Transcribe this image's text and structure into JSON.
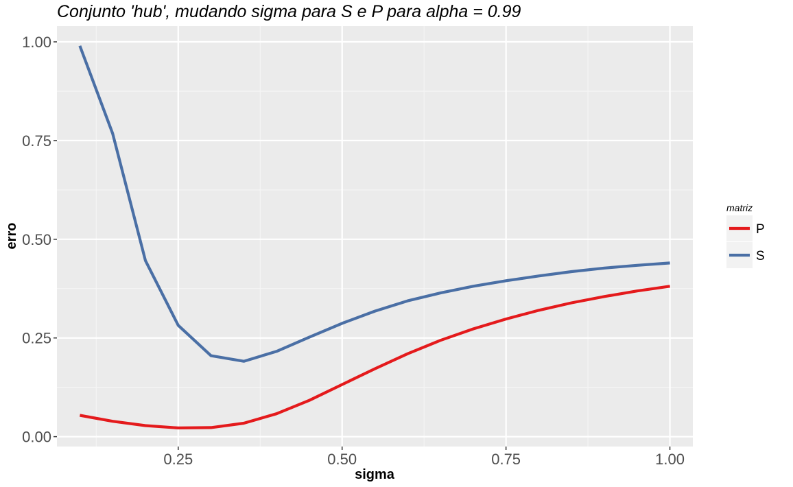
{
  "chart_data": {
    "type": "line",
    "title": "Conjunto 'hub', mudando sigma para S e P para alpha = 0.99",
    "xlabel": "sigma",
    "ylabel": "erro",
    "xlim": [
      0.065,
      1.035
    ],
    "ylim": [
      -0.025,
      1.04
    ],
    "x_ticks": [
      0.25,
      0.5,
      0.75,
      1.0
    ],
    "x_tick_labels": [
      "0.25",
      "0.50",
      "0.75",
      "1.00"
    ],
    "y_ticks": [
      0.0,
      0.25,
      0.5,
      0.75,
      1.0
    ],
    "y_tick_labels": [
      "0.00",
      "0.25",
      "0.50",
      "0.75",
      "1.00"
    ],
    "grid": true,
    "legend": {
      "title": "matriz",
      "position": "right"
    },
    "x": [
      0.1,
      0.15,
      0.2,
      0.25,
      0.3,
      0.35,
      0.4,
      0.45,
      0.5,
      0.55,
      0.6,
      0.65,
      0.7,
      0.75,
      0.8,
      0.85,
      0.9,
      0.95,
      1.0
    ],
    "series": [
      {
        "name": "P",
        "color": "#e41a1c",
        "values": [
          0.054,
          0.039,
          0.028,
          0.022,
          0.023,
          0.034,
          0.058,
          0.092,
          0.132,
          0.172,
          0.21,
          0.244,
          0.273,
          0.298,
          0.32,
          0.339,
          0.355,
          0.369,
          0.381
        ]
      },
      {
        "name": "S",
        "color": "#4a6fa5",
        "values": [
          0.99,
          0.768,
          0.446,
          0.282,
          0.205,
          0.191,
          0.216,
          0.252,
          0.287,
          0.318,
          0.344,
          0.364,
          0.381,
          0.395,
          0.407,
          0.418,
          0.427,
          0.434,
          0.44
        ]
      }
    ]
  }
}
